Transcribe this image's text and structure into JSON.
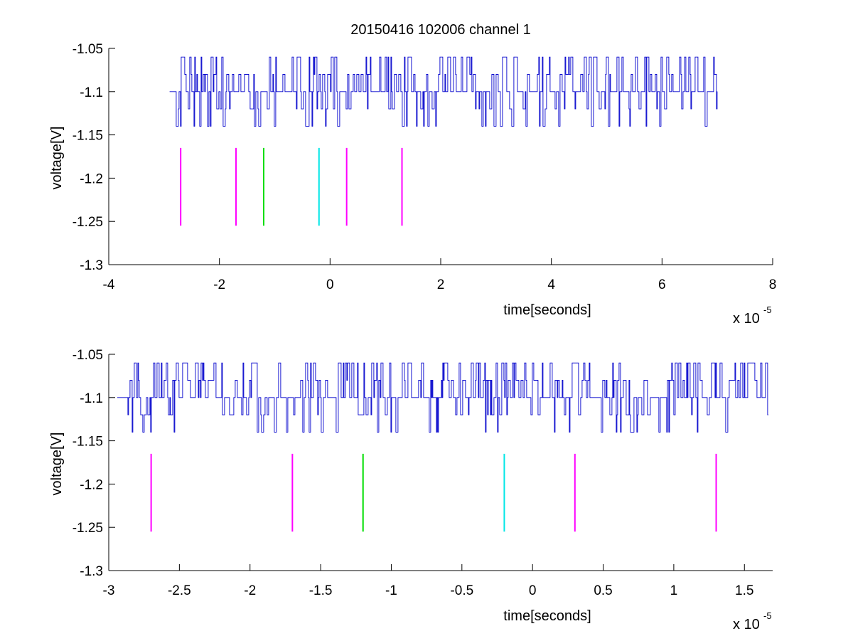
{
  "figure": {
    "title": "20150416 102006 channel 1",
    "background": "#ffffff"
  },
  "chart_data": [
    {
      "type": "line",
      "title": "20150416 102006 channel 1",
      "xlabel": "time[seconds]",
      "ylabel": "voltage[V]",
      "x_multiplier_label": "x 10",
      "x_multiplier_exponent": "-5",
      "xlim": [
        -4,
        8
      ],
      "ylim": [
        -1.3,
        -1.05
      ],
      "x_ticks": [
        -4,
        -2,
        0,
        2,
        4,
        6,
        8
      ],
      "x_tick_labels": [
        "-4",
        "-2",
        "0",
        "2",
        "4",
        "6",
        "8"
      ],
      "y_ticks": [
        -1.3,
        -1.25,
        -1.2,
        -1.15,
        -1.1,
        -1.05
      ],
      "y_tick_labels": [
        "-1.3",
        "-1.25",
        "-1.2",
        "-1.15",
        "-1.1",
        "-1.05"
      ],
      "grid": false,
      "series": [
        {
          "color": "#0000cc",
          "style": "noisy digital signal",
          "x_range": [
            -2.9,
            7.0
          ],
          "baseline": -1.1,
          "levels": [
            -1.06,
            -1.08,
            -1.1,
            -1.12,
            -1.14
          ],
          "seed": 7
        }
      ],
      "markers": [
        {
          "x": -2.7,
          "y_range": [
            -1.255,
            -1.165
          ],
          "color": "#ff00ff"
        },
        {
          "x": -1.7,
          "y_range": [
            -1.255,
            -1.165
          ],
          "color": "#ff00ff"
        },
        {
          "x": -1.2,
          "y_range": [
            -1.255,
            -1.165
          ],
          "color": "#00dd00"
        },
        {
          "x": -0.2,
          "y_range": [
            -1.255,
            -1.165
          ],
          "color": "#00e6e6"
        },
        {
          "x": 0.3,
          "y_range": [
            -1.255,
            -1.165
          ],
          "color": "#ff00ff"
        },
        {
          "x": 1.3,
          "y_range": [
            -1.255,
            -1.165
          ],
          "color": "#ff00ff"
        }
      ]
    },
    {
      "type": "line",
      "title": "",
      "xlabel": "time[seconds]",
      "ylabel": "voltage[V]",
      "x_multiplier_label": "x 10",
      "x_multiplier_exponent": "-5",
      "xlim": [
        -3.0,
        1.7
      ],
      "ylim": [
        -1.3,
        -1.05
      ],
      "x_ticks": [
        -3,
        -2.5,
        -2,
        -1.5,
        -1,
        -0.5,
        0,
        0.5,
        1,
        1.5
      ],
      "x_tick_labels": [
        "-3",
        "-2.5",
        "-2",
        "-1.5",
        "-1",
        "-0.5",
        "0",
        "0.5",
        "1",
        "1.5"
      ],
      "y_ticks": [
        -1.3,
        -1.25,
        -1.2,
        -1.15,
        -1.1,
        -1.05
      ],
      "y_tick_labels": [
        "-1.3",
        "-1.25",
        "-1.2",
        "-1.15",
        "-1.1",
        "-1.05"
      ],
      "grid": false,
      "series": [
        {
          "color": "#0000cc",
          "style": "noisy digital signal",
          "x_range": [
            -2.94,
            1.67
          ],
          "baseline": -1.1,
          "levels": [
            -1.06,
            -1.08,
            -1.1,
            -1.12,
            -1.14
          ],
          "seed": 19
        }
      ],
      "markers": [
        {
          "x": -2.7,
          "y_range": [
            -1.255,
            -1.165
          ],
          "color": "#ff00ff"
        },
        {
          "x": -1.7,
          "y_range": [
            -1.255,
            -1.165
          ],
          "color": "#ff00ff"
        },
        {
          "x": -1.2,
          "y_range": [
            -1.255,
            -1.165
          ],
          "color": "#00dd00"
        },
        {
          "x": -0.2,
          "y_range": [
            -1.255,
            -1.165
          ],
          "color": "#00e6e6"
        },
        {
          "x": 0.3,
          "y_range": [
            -1.255,
            -1.165
          ],
          "color": "#ff00ff"
        },
        {
          "x": 1.3,
          "y_range": [
            -1.255,
            -1.165
          ],
          "color": "#ff00ff"
        }
      ]
    }
  ]
}
